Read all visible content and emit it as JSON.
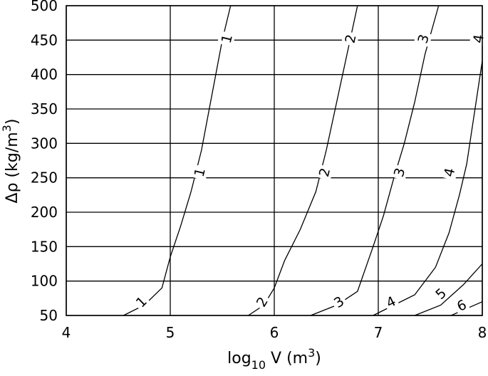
{
  "chart_data": {
    "type": "line",
    "xlabel": {
      "main": "log",
      "sub": "10",
      "rest": " V (m",
      "sup": "3",
      "end": ")"
    },
    "ylabel": {
      "main": "Δρ (kg/m",
      "sup": "3",
      "end": ")"
    },
    "xlim": [
      4,
      8
    ],
    "ylim": [
      50,
      500
    ],
    "x_ticks": [
      "4",
      "5",
      "6",
      "7",
      "8"
    ],
    "y_ticks": [
      "50",
      "100",
      "150",
      "200",
      "250",
      "300",
      "350",
      "400",
      "450",
      "500"
    ],
    "grid": true,
    "series": [
      {
        "label": "1",
        "points": [
          [
            4.55,
            50
          ],
          [
            4.75,
            65
          ],
          [
            4.92,
            90
          ],
          [
            5.0,
            135
          ],
          [
            5.1,
            180
          ],
          [
            5.2,
            230
          ],
          [
            5.3,
            290
          ],
          [
            5.4,
            370
          ],
          [
            5.5,
            450
          ],
          [
            5.58,
            500
          ]
        ],
        "labels_at": [
          [
            4.72,
            70
          ],
          [
            5.28,
            258
          ],
          [
            5.54,
            452
          ]
        ]
      },
      {
        "label": "2",
        "points": [
          [
            5.75,
            50
          ],
          [
            5.9,
            65
          ],
          [
            6.0,
            90
          ],
          [
            6.1,
            130
          ],
          [
            6.25,
            175
          ],
          [
            6.4,
            230
          ],
          [
            6.5,
            290
          ],
          [
            6.6,
            360
          ],
          [
            6.7,
            430
          ],
          [
            6.8,
            500
          ]
        ],
        "labels_at": [
          [
            5.88,
            70
          ],
          [
            6.48,
            258
          ],
          [
            6.73,
            452
          ]
        ]
      },
      {
        "label": "3",
        "points": [
          [
            6.35,
            50
          ],
          [
            6.6,
            65
          ],
          [
            6.8,
            85
          ],
          [
            6.95,
            150
          ],
          [
            7.05,
            195
          ],
          [
            7.15,
            250
          ],
          [
            7.25,
            300
          ],
          [
            7.35,
            360
          ],
          [
            7.45,
            430
          ],
          [
            7.58,
            500
          ]
        ],
        "labels_at": [
          [
            6.62,
            70
          ],
          [
            7.2,
            258
          ],
          [
            7.43,
            452
          ]
        ]
      },
      {
        "label": "4",
        "points": [
          [
            6.95,
            50
          ],
          [
            7.15,
            65
          ],
          [
            7.35,
            80
          ],
          [
            7.55,
            120
          ],
          [
            7.68,
            170
          ],
          [
            7.78,
            225
          ],
          [
            7.85,
            270
          ],
          [
            7.92,
            340
          ],
          [
            8.0,
            420
          ]
        ],
        "labels_at": [
          [
            7.12,
            70
          ],
          [
            7.68,
            258
          ],
          [
            7.96,
            452
          ]
        ]
      },
      {
        "label": "5",
        "points": [
          [
            7.35,
            50
          ],
          [
            7.6,
            65
          ],
          [
            7.82,
            95
          ],
          [
            8.0,
            125
          ]
        ],
        "labels_at": [
          [
            7.6,
            82
          ]
        ]
      },
      {
        "label": "6",
        "points": [
          [
            7.7,
            50
          ],
          [
            7.85,
            60
          ],
          [
            8.0,
            70
          ]
        ],
        "labels_at": [
          [
            7.8,
            65
          ]
        ]
      }
    ]
  }
}
